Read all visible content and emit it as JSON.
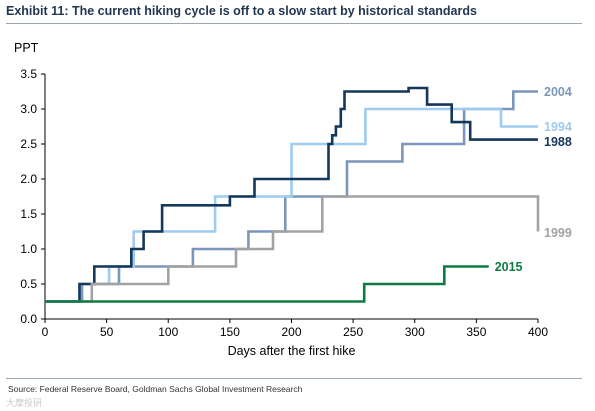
{
  "title": "Exhibit 11: The current hiking cycle is off to a slow start by historical standards",
  "source": "Source: Federal Reserve Board, Goldman Sachs Global Investment Research",
  "watermark": "大摩投研",
  "chart_data": {
    "type": "line",
    "step": true,
    "ylabel": "PPT",
    "xlabel": "Days after the first hike",
    "xlim": [
      0,
      400
    ],
    "ylim": [
      0,
      3.5
    ],
    "xticks": [
      0,
      50,
      100,
      150,
      200,
      250,
      300,
      350,
      400
    ],
    "yticks": [
      0,
      0.5,
      1.0,
      1.5,
      2.0,
      2.5,
      3.0,
      3.5
    ],
    "ytick_labels": [
      "0.0",
      "0.5",
      "1.0",
      "1.5",
      "2.0",
      "2.5",
      "3.0",
      "3.5"
    ],
    "grid": false,
    "legend": "inline labels at right end of lines",
    "series": [
      {
        "name": "2004",
        "color": "#7b96bb",
        "x": [
          0,
          30,
          60,
          120,
          165,
          195,
          245,
          290,
          340,
          380,
          400
        ],
        "y": [
          0.25,
          0.5,
          0.75,
          1.0,
          1.25,
          1.75,
          2.25,
          2.5,
          3.0,
          3.25,
          3.25
        ]
      },
      {
        "name": "1994",
        "color": "#9fcbee",
        "x": [
          0,
          28,
          40,
          52,
          72,
          112,
          138,
          200,
          260,
          370,
          400
        ],
        "y": [
          0.25,
          0.5,
          0.5,
          0.75,
          1.25,
          1.25,
          1.75,
          2.5,
          3.0,
          2.75,
          2.75
        ]
      },
      {
        "name": "1988",
        "color": "#14375c",
        "x": [
          0,
          28,
          40,
          60,
          70,
          80,
          95,
          150,
          170,
          190,
          230,
          233,
          236,
          240,
          243,
          250,
          295,
          310,
          330,
          345,
          400
        ],
        "y": [
          0.25,
          0.5,
          0.75,
          0.75,
          1.0,
          1.25,
          1.625,
          1.75,
          2.0,
          2.0,
          2.5,
          2.625,
          2.75,
          3.0,
          3.25,
          3.25,
          3.3,
          3.0625,
          2.8125,
          2.5625,
          2.5625
        ]
      },
      {
        "name": "1999",
        "color": "#a2a2a2",
        "x": [
          0,
          38,
          100,
          155,
          185,
          225,
          400
        ],
        "y": [
          0.25,
          0.5,
          0.75,
          1.0,
          1.25,
          1.75,
          1.25
        ]
      },
      {
        "name": "2015",
        "color": "#0f7a44",
        "x": [
          0,
          259,
          324,
          360
        ],
        "y": [
          0.25,
          0.5,
          0.75,
          0.75
        ]
      }
    ]
  }
}
